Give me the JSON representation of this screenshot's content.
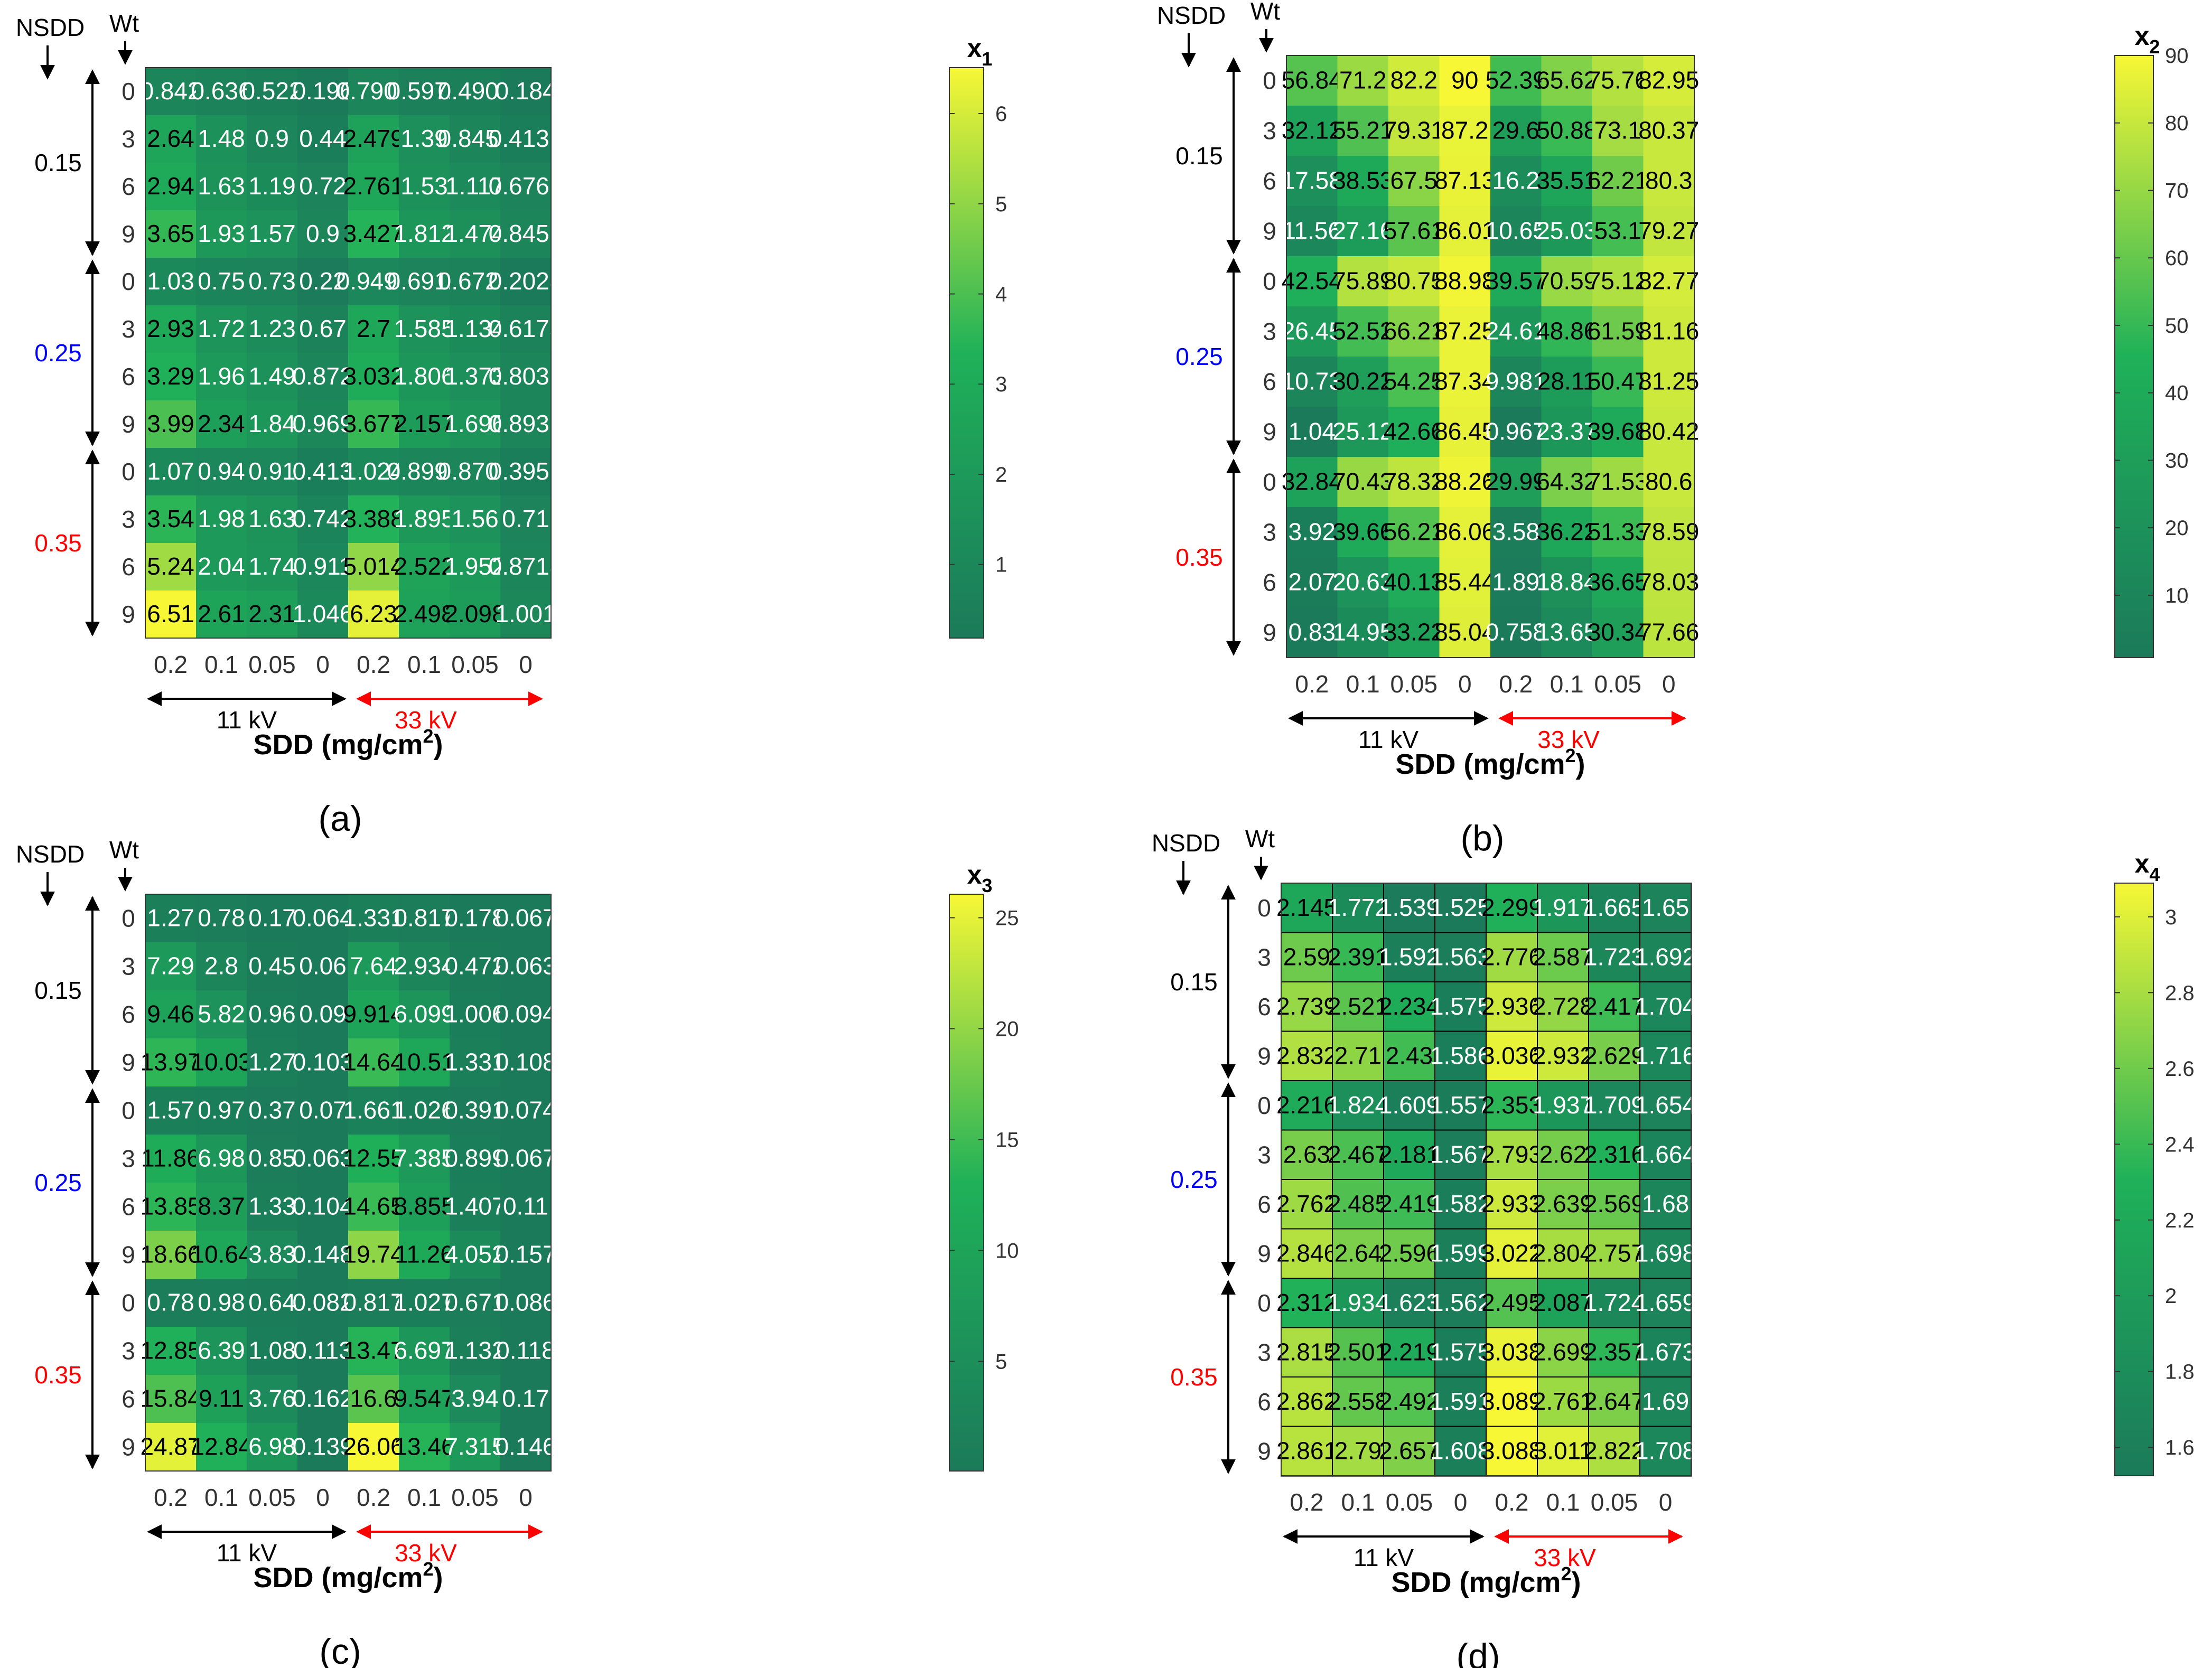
{
  "axis_common": {
    "nsdd_label": "NSDD",
    "wt_label": "Wt",
    "xlabel_main": "SDD (mg/cm",
    "xlabel_sup": "2",
    "xlabel_tail": ")",
    "group_11kv": "11 kV",
    "group_33kv": "33 kV",
    "nsdd_levels": [
      "0.15",
      "0.25",
      "0.35"
    ],
    "nsdd_colors": [
      "#000000",
      "#0000ff",
      "#ff0000"
    ],
    "wt_ticks": [
      "0",
      "3",
      "6",
      "9"
    ],
    "sdd_ticks": [
      "0.2",
      "0.1",
      "0.05",
      "0",
      "0.2",
      "0.1",
      "0.05",
      "0"
    ],
    "arrow_colors": {
      "kv11": "#000000",
      "kv33": "#ff0000"
    },
    "colormap": {
      "low": "#1b7a5a",
      "mid": "#1fb159",
      "high": "#f7f735"
    }
  },
  "chart_data": [
    {
      "type": "heatmap",
      "panel_label": "(a)",
      "panel_letter": "a",
      "cbar_title": "x",
      "cbar_sub": "1",
      "clim": [
        0.184,
        6.51
      ],
      "cbar_ticks": [
        1,
        2,
        3,
        4,
        5,
        6
      ],
      "gridlines": false,
      "x": [
        "0.2",
        "0.1",
        "0.05",
        "0",
        "0.2",
        "0.1",
        "0.05",
        "0"
      ],
      "y_nsdd": [
        "0.15",
        "0.15",
        "0.15",
        "0.15",
        "0.25",
        "0.25",
        "0.25",
        "0.25",
        "0.35",
        "0.35",
        "0.35",
        "0.35"
      ],
      "y_wt": [
        "0",
        "3",
        "6",
        "9",
        "0",
        "3",
        "6",
        "9",
        "0",
        "3",
        "6",
        "9"
      ],
      "values": [
        [
          "0.842",
          "0.636",
          "0.522",
          "0.196",
          "0.7906",
          "0.5972",
          "0.4901",
          "0.184"
        ],
        [
          "2.64",
          "1.48",
          "0.9",
          "0.44",
          "2.479",
          "1.39",
          "0.8451",
          "0.4131"
        ],
        [
          "2.94",
          "1.63",
          "1.19",
          "0.72",
          "2.761",
          "1.53",
          "1.117",
          "0.6761"
        ],
        [
          "3.65",
          "1.93",
          "1.57",
          "0.9",
          "3.427",
          "1.812",
          "1.474",
          "0.8451"
        ],
        [
          "1.03",
          "0.75",
          "0.73",
          "0.22",
          "0.9493",
          "0.6912",
          "0.6728",
          "0.2028"
        ],
        [
          "2.93",
          "1.72",
          "1.23",
          "0.67",
          "2.7",
          "1.585",
          "1.134",
          "0.6175"
        ],
        [
          "3.29",
          "1.96",
          "1.49",
          "0.872",
          "3.032",
          "1.806",
          "1.373",
          "0.8037"
        ],
        [
          "3.99",
          "2.34",
          "1.84",
          "0.969",
          "3.677",
          "2.157",
          "1.696",
          "0.8931"
        ],
        [
          "1.07",
          "0.94",
          "0.91",
          "0.413",
          "1.024",
          "0.8995",
          "0.8708",
          "0.3952"
        ],
        [
          "3.54",
          "1.98",
          "1.63",
          "0.742",
          "3.388",
          "1.895",
          "1.56",
          "0.71"
        ],
        [
          "5.24",
          "2.04",
          "1.74",
          "0.911",
          "5.014",
          "2.522",
          "1.952",
          "0.8718"
        ],
        [
          "6.51",
          "2.61",
          "2.31",
          "1.046",
          "6.23",
          "2.498",
          "2.098",
          "1.001"
        ]
      ]
    },
    {
      "type": "heatmap",
      "panel_label": "(b)",
      "panel_letter": "b",
      "cbar_title": "x",
      "cbar_sub": "2",
      "clim": [
        0.758,
        90
      ],
      "cbar_ticks": [
        10,
        20,
        30,
        40,
        50,
        60,
        70,
        80,
        90
      ],
      "gridlines": false,
      "x": [
        "0.2",
        "0.1",
        "0.05",
        "0",
        "0.2",
        "0.1",
        "0.05",
        "0"
      ],
      "y_nsdd": [
        "0.15",
        "0.15",
        "0.15",
        "0.15",
        "0.25",
        "0.25",
        "0.25",
        "0.25",
        "0.35",
        "0.35",
        "0.35",
        "0.35"
      ],
      "y_wt": [
        "0",
        "3",
        "6",
        "9",
        "0",
        "3",
        "6",
        "9",
        "0",
        "3",
        "6",
        "9"
      ],
      "values": [
        [
          "56.84",
          "71.2",
          "82.2",
          "90",
          "52.39",
          "65.62",
          "75.76",
          "82.95"
        ],
        [
          "32.12",
          "55.21",
          "79.31",
          "87.2",
          "29.6",
          "50.88",
          "73.1",
          "80.37"
        ],
        [
          "17.58",
          "38.53",
          "67.5",
          "87.13",
          "16.2",
          "35.51",
          "62.21",
          "80.3"
        ],
        [
          "11.56",
          "27.16",
          "57.61",
          "86.01",
          "10.65",
          "25.03",
          "53.1",
          "79.27"
        ],
        [
          "42.54",
          "75.89",
          "80.75",
          "88.98",
          "39.57",
          "70.59",
          "75.12",
          "82.77"
        ],
        [
          "26.45",
          "52.52",
          "66.21",
          "87.25",
          "24.61",
          "48.86",
          "61.59",
          "81.16"
        ],
        [
          "10.73",
          "30.22",
          "54.25",
          "87.34",
          "9.981",
          "28.11",
          "50.47",
          "81.25"
        ],
        [
          "1.04",
          "25.12",
          "42.66",
          "86.45",
          "0.967",
          "23.37",
          "39.68",
          "80.42"
        ],
        [
          "32.84",
          "70.43",
          "78.32",
          "88.26",
          "29.99",
          "64.32",
          "71.53",
          "80.6"
        ],
        [
          "3.92",
          "39.66",
          "56.21",
          "86.06",
          "3.58",
          "36.22",
          "51.33",
          "78.59"
        ],
        [
          "2.07",
          "20.63",
          "40.13",
          "85.44",
          "1.89",
          "18.84",
          "36.65",
          "78.03"
        ],
        [
          "0.83",
          "14.95",
          "33.22",
          "85.04",
          "0.758",
          "13.65",
          "30.34",
          "77.66"
        ]
      ]
    },
    {
      "type": "heatmap",
      "panel_label": "(c)",
      "panel_letter": "c",
      "cbar_title": "x",
      "cbar_sub": "3",
      "clim": [
        0.06,
        26.06
      ],
      "cbar_ticks": [
        5,
        10,
        15,
        20,
        25
      ],
      "gridlines": false,
      "x": [
        "0.2",
        "0.1",
        "0.05",
        "0",
        "0.2",
        "0.1",
        "0.05",
        "0"
      ],
      "y_nsdd": [
        "0.15",
        "0.15",
        "0.15",
        "0.15",
        "0.25",
        "0.25",
        "0.25",
        "0.25",
        "0.35",
        "0.35",
        "0.35",
        "0.35"
      ],
      "y_wt": [
        "0",
        "3",
        "6",
        "9",
        "0",
        "3",
        "6",
        "9",
        "0",
        "3",
        "6",
        "9"
      ],
      "values": [
        [
          "1.27",
          "0.78",
          "0.17",
          "0.064",
          "1.331",
          "0.817",
          "0.178",
          "0.067"
        ],
        [
          "7.29",
          "2.8",
          "0.45",
          "0.06",
          "7.64",
          "2.934",
          "0.472",
          "0.063"
        ],
        [
          "9.46",
          "5.82",
          "0.96",
          "0.09",
          "9.914",
          "6.099",
          "1.006",
          "0.094"
        ],
        [
          "13.97",
          "10.03",
          "1.27",
          "0.103",
          "14.64",
          "10.51",
          "1.331",
          "0.108"
        ],
        [
          "1.57",
          "0.97",
          "0.37",
          "0.07",
          "1.661",
          "1.026",
          "0.391",
          "0.074"
        ],
        [
          "11.86",
          "6.98",
          "0.85",
          "0.063",
          "12.55",
          "7.385",
          "0.899",
          "0.067"
        ],
        [
          "13.85",
          "8.37",
          "1.33",
          "0.104",
          "14.65",
          "8.855",
          "1.407",
          "0.11"
        ],
        [
          "18.66",
          "10.64",
          "3.83",
          "0.148",
          "19.74",
          "11.26",
          "4.052",
          "0.157"
        ],
        [
          "0.78",
          "0.98",
          "0.64",
          "0.082",
          "0.817",
          "1.027",
          "0.671",
          "0.086"
        ],
        [
          "12.85",
          "6.39",
          "1.08",
          "0.113",
          "13.47",
          "6.697",
          "1.132",
          "0.118"
        ],
        [
          "15.84",
          "9.11",
          "3.76",
          "0.162",
          "16.6",
          "9.547",
          "3.94",
          "0.17"
        ],
        [
          "24.87",
          "12.84",
          "6.98",
          "0.139",
          "26.06",
          "13.46",
          "7.315",
          "0.146"
        ]
      ]
    },
    {
      "type": "heatmap",
      "panel_label": "(d)",
      "panel_letter": "d",
      "cbar_title": "x",
      "cbar_sub": "4",
      "clim": [
        1.525,
        3.089
      ],
      "cbar_ticks": [
        1.6,
        1.8,
        2,
        2.2,
        2.4,
        2.6,
        2.8,
        3
      ],
      "gridlines": true,
      "x": [
        "0.2",
        "0.1",
        "0.05",
        "0",
        "0.2",
        "0.1",
        "0.05",
        "0"
      ],
      "y_nsdd": [
        "0.15",
        "0.15",
        "0.15",
        "0.15",
        "0.25",
        "0.25",
        "0.25",
        "0.25",
        "0.35",
        "0.35",
        "0.35",
        "0.35"
      ],
      "y_wt": [
        "0",
        "3",
        "6",
        "9",
        "0",
        "3",
        "6",
        "9",
        "0",
        "3",
        "6",
        "9"
      ],
      "values": [
        [
          "2.145",
          "1.772",
          "1.539",
          "1.525",
          "2.299",
          "1.917",
          "1.665",
          "1.65"
        ],
        [
          "2.59",
          "2.391",
          "1.592",
          "1.563",
          "2.776",
          "2.587",
          "1.723",
          "1.692"
        ],
        [
          "2.739",
          "2.521",
          "2.234",
          "1.575",
          "2.936",
          "2.728",
          "2.417",
          "1.704"
        ],
        [
          "2.832",
          "2.71",
          "2.43",
          "1.586",
          "3.036",
          "2.932",
          "2.629",
          "1.716"
        ],
        [
          "2.216",
          "1.824",
          "1.609",
          "1.557",
          "2.353",
          "1.937",
          "1.709",
          "1.654"
        ],
        [
          "2.63",
          "2.467",
          "2.181",
          "1.567",
          "2.793",
          "2.62",
          "2.316",
          "1.664"
        ],
        [
          "2.762",
          "2.485",
          "2.419",
          "1.582",
          "2.933",
          "2.639",
          "2.569",
          "1.68"
        ],
        [
          "2.846",
          "2.64",
          "2.596",
          "1.599",
          "3.022",
          "2.804",
          "2.757",
          "1.698"
        ],
        [
          "2.312",
          "1.934",
          "1.623",
          "1.562",
          "2.495",
          "2.087",
          "1.724",
          "1.659"
        ],
        [
          "2.815",
          "2.501",
          "2.219",
          "1.575",
          "3.038",
          "2.699",
          "2.357",
          "1.673"
        ],
        [
          "2.862",
          "2.558",
          "2.492",
          "1.591",
          "3.089",
          "2.761",
          "2.647",
          "1.69"
        ],
        [
          "2.861",
          "2.79",
          "2.657",
          "1.608",
          "3.088",
          "3.011",
          "2.822",
          "1.708"
        ]
      ]
    }
  ]
}
